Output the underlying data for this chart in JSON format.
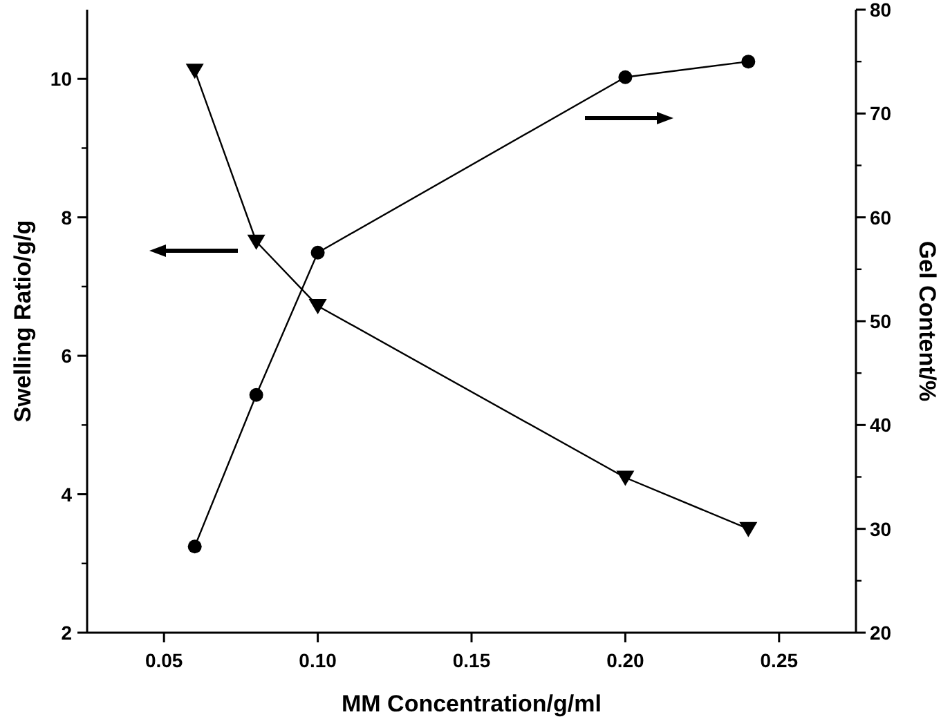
{
  "chart_data": {
    "type": "line",
    "xlabel": "MM Concentration/g/ml",
    "ylabel": "Swelling Ratio/g/g",
    "y2label": "Gel Content/%",
    "xlim": [
      0.025,
      0.275
    ],
    "xticks": [
      {
        "value": 0.05,
        "label": "0.05"
      },
      {
        "value": 0.1,
        "label": "0.10"
      },
      {
        "value": 0.15,
        "label": "0.15"
      },
      {
        "value": 0.2,
        "label": "0.20"
      },
      {
        "value": 0.25,
        "label": "0.25"
      }
    ],
    "ylim": [
      2,
      11
    ],
    "yticks": [
      2,
      4,
      6,
      8,
      10
    ],
    "y2lim": [
      20,
      80
    ],
    "y2ticks": [
      20,
      30,
      40,
      50,
      60,
      70,
      80
    ],
    "x": [
      0.06,
      0.08,
      0.1,
      0.2,
      0.24
    ],
    "series": [
      {
        "color": "#000000",
        "marker": "triangle",
        "values": [
          10.12,
          7.65,
          6.72,
          4.24,
          3.5
        ]
      },
      {
        "color": "#000000",
        "marker": "circle",
        "axis": "y2",
        "values": [
          28.3,
          42.9,
          56.6,
          73.5,
          75.0
        ]
      }
    ],
    "line_style": "solid"
  }
}
